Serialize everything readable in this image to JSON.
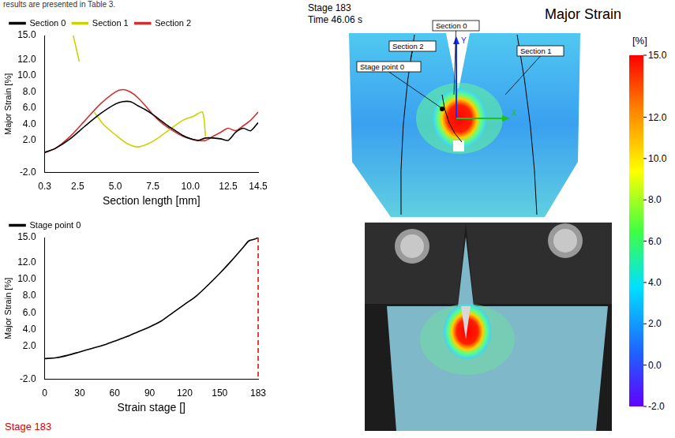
{
  "caption_fragment": "results are presented in Table 3.",
  "chart_data": [
    {
      "type": "line",
      "x_label": "Section length [mm]",
      "y_label": "Major Strain [%]",
      "xlim": [
        0.3,
        14.5
      ],
      "xticks": [
        0.3,
        2.5,
        {
          "value": 5,
          "label": "5.0"
        },
        7.5,
        {
          "value": 10,
          "label": "10.0"
        },
        12.5,
        14.5
      ],
      "ylim": [
        -2,
        15
      ],
      "yticks": [
        {
          "value": -2,
          "label": "-2.0"
        },
        {
          "value": 2,
          "label": "2.0"
        },
        {
          "value": 4,
          "label": "4.0"
        },
        {
          "value": 6,
          "label": "6.0"
        },
        {
          "value": 8,
          "label": "8.0"
        },
        {
          "value": 10,
          "label": "10.0"
        },
        {
          "value": 12,
          "label": "12.0"
        },
        {
          "value": 15,
          "label": "15.0"
        }
      ],
      "grid": false,
      "legend": "top",
      "series": [
        {
          "name": "Section 0",
          "color": "#000000",
          "line_style": "solid",
          "x": [
            0.3,
            1.0,
            2.0,
            3.0,
            4.0,
            5.0,
            5.5,
            6.0,
            6.5,
            7.0,
            7.5,
            8.0,
            8.5,
            9.0,
            9.5,
            10.0,
            10.5,
            11.0,
            11.5,
            12.0,
            12.5,
            13.0,
            13.5,
            14.0,
            14.5
          ],
          "values": [
            0.5,
            1.0,
            2.2,
            3.8,
            5.3,
            6.5,
            6.8,
            6.8,
            6.3,
            5.8,
            5.2,
            4.5,
            3.8,
            3.2,
            2.6,
            2.2,
            2.0,
            2.3,
            2.3,
            2.2,
            2.0,
            3.0,
            3.5,
            3.2,
            4.2
          ]
        },
        {
          "name": "Section 1",
          "color": "#c8d400",
          "line_style": "solid",
          "x": [
            2.2,
            2.6,
            3.0,
            3.6,
            4.2,
            5.0,
            5.8,
            6.5,
            7.2,
            8.0,
            8.8,
            9.5,
            10.2,
            10.8,
            11.0
          ],
          "values": [
            15.0,
            11.8,
            null,
            5.5,
            4.0,
            2.7,
            1.6,
            1.2,
            1.6,
            2.5,
            3.6,
            4.5,
            5.0,
            5.5,
            2.5
          ]
        },
        {
          "name": "Section 2",
          "color": "#d03030",
          "line_style": "solid",
          "x": [
            0.3,
            1.0,
            2.0,
            3.0,
            4.0,
            5.0,
            5.5,
            6.0,
            6.5,
            7.0,
            7.5,
            8.0,
            8.5,
            9.0,
            9.5,
            10.0,
            10.5,
            11.0,
            11.5,
            12.0,
            12.5,
            13.0,
            13.5,
            14.0,
            14.5
          ],
          "values": [
            0.5,
            1.0,
            2.5,
            4.5,
            6.5,
            8.0,
            8.3,
            8.0,
            7.3,
            6.3,
            5.2,
            4.3,
            3.6,
            3.0,
            2.5,
            2.2,
            2.0,
            2.0,
            2.5,
            3.0,
            3.5,
            3.2,
            3.8,
            4.5,
            5.5
          ]
        }
      ]
    },
    {
      "type": "line",
      "x_label": "Strain stage []",
      "y_label": "Major Strain [%]",
      "xlim": [
        0,
        183
      ],
      "xticks": [
        0,
        30,
        60,
        90,
        120,
        150,
        183
      ],
      "ylim": [
        -2,
        15
      ],
      "yticks": [
        {
          "value": -2,
          "label": "-2.0"
        },
        {
          "value": 2,
          "label": "2.0"
        },
        {
          "value": 4,
          "label": "4.0"
        },
        {
          "value": 6,
          "label": "6.0"
        },
        {
          "value": 8,
          "label": "8.0"
        },
        {
          "value": 10,
          "label": "10.0"
        },
        {
          "value": 12,
          "label": "12.0"
        },
        {
          "value": 15,
          "label": "15.0"
        }
      ],
      "grid": false,
      "legend": "top",
      "stage_marker": {
        "x": 183,
        "color": "#e00000",
        "line_style": "dashed"
      },
      "series": [
        {
          "name": "Stage point 0",
          "color": "#000000",
          "line_style": "solid",
          "x": [
            0,
            10,
            20,
            30,
            40,
            50,
            60,
            70,
            80,
            90,
            100,
            110,
            120,
            130,
            140,
            150,
            160,
            170,
            175,
            180,
            183
          ],
          "values": [
            0.5,
            0.6,
            0.9,
            1.3,
            1.7,
            2.1,
            2.6,
            3.1,
            3.7,
            4.3,
            5.0,
            6.0,
            7.0,
            8.0,
            9.3,
            10.7,
            12.2,
            13.8,
            14.6,
            14.8,
            15.0
          ]
        }
      ]
    }
  ],
  "footer_label": {
    "text": "Stage 183",
    "color": "#e00000"
  },
  "strain_map": {
    "stage": "Stage 183",
    "time": "Time 46.06 s",
    "title": "Major Strain",
    "labels": [
      "Section 0",
      "Section 1",
      "Section 2",
      "Stage point 0"
    ],
    "axes": [
      "Y",
      "X"
    ],
    "colorbar": {
      "unit": "[%]",
      "range": [
        -2,
        15
      ],
      "ticks": [
        {
          "value": 15,
          "label": "15.0"
        },
        {
          "value": 12,
          "label": "12.0"
        },
        {
          "value": 10,
          "label": "10.0"
        },
        {
          "value": 8,
          "label": "8.0"
        },
        {
          "value": 6,
          "label": "6.0"
        },
        {
          "value": 4,
          "label": "4.0"
        },
        {
          "value": 2,
          "label": "2.0"
        },
        {
          "value": 0,
          "label": "0.0"
        },
        {
          "value": -2,
          "label": "-2.0"
        }
      ]
    }
  }
}
